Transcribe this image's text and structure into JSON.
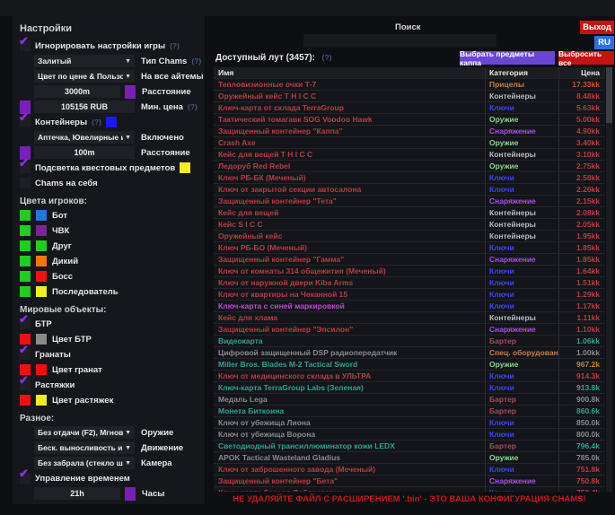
{
  "window": {
    "search_label": "Поиск",
    "exit_button": "Выход",
    "lang_button": "RU",
    "footer_warning": "НЕ УДАЛЯЙТЕ ФАЙЛ С РАСШИРЕНИЕМ '.bin' - ЭТО ВАША КОНФИГУРАЦИЯ CHAMS!"
  },
  "settings": {
    "title": "Настройки",
    "hint": "(?)",
    "ignore": {
      "label": "Игнорировать настройки игры",
      "hint": "(?)"
    },
    "chams_type": {
      "value": "Залитый",
      "label": "Тип Chams",
      "hint": "(?)"
    },
    "color_mode": {
      "value": "Цвет по цене & Пользователь",
      "label": "На все айтемы"
    },
    "distance": {
      "value": "3000m",
      "label": "Расстояние",
      "swatch": "#7a1fb8"
    },
    "min_price": {
      "value": "105156 RUB",
      "label": "Мин. цена",
      "hint": "(?)",
      "swatch": "#7a1fb8"
    },
    "containers": {
      "label": "Контейнеры",
      "hint": "(?)",
      "swatch": "#1a1aee"
    },
    "loot_filter": {
      "value": "Аптечка, Ювелирные и...",
      "label": "Включено"
    },
    "loot_distance": {
      "value": "100m",
      "label": "Расстояние",
      "swatch": "#7a1fb8"
    },
    "quest_items": {
      "label": "Подсветка квестовых предметов",
      "swatch": "#f2ee22"
    },
    "chams_self": {
      "label": "Chams на себя"
    },
    "player_colors": {
      "title": "Цвета игроков:",
      "items": [
        {
          "label": "Бот",
          "c1": "#22cc22",
          "c2": "#2277dd"
        },
        {
          "label": "ЧВК",
          "c1": "#22cc22",
          "c2": "#7b2597"
        },
        {
          "label": "Друг",
          "c1": "#22cc22",
          "c2": "#22cc22"
        },
        {
          "label": "Дикий",
          "c1": "#22cc22",
          "c2": "#ee7711"
        },
        {
          "label": "Босс",
          "c1": "#22cc22",
          "c2": "#ee1111"
        },
        {
          "label": "Последователь",
          "c1": "#22cc22",
          "c2": "#eeee22"
        }
      ]
    },
    "world_objects": {
      "title": "Мировые объекты:",
      "btr": {
        "label": "БТР"
      },
      "btr_color": {
        "label": "Цвет БТР",
        "c1": "#ee1111",
        "c2": "#8a8a8a"
      },
      "grenades": {
        "label": "Гранаты"
      },
      "grenades_color": {
        "label": "Цвет гранат",
        "c1": "#ee1111",
        "c2": "#ee1111"
      },
      "tripwires": {
        "label": "Растяжки"
      },
      "tripwires_color": {
        "label": "Цвет растяжек",
        "c1": "#ee1111",
        "c2": "#eeee22"
      }
    },
    "misc": {
      "title": "Разное:",
      "dropdowns": [
        {
          "value": "Без отдачи (F2), Мгновенное п",
          "label": "Оружие"
        },
        {
          "value": "Беск. выносливость и нет уста",
          "label": "Движение"
        },
        {
          "value": "Без забрала (стекло шлема)",
          "label": "Камера"
        }
      ],
      "time_control": {
        "label": "Управление временем"
      },
      "hours": {
        "value": "21h",
        "label": "Часы",
        "swatch": "#7a1fb8"
      }
    }
  },
  "loot": {
    "title": "Доступный лут (3457):",
    "hint": "(?)",
    "kappa_button": "Выбрать предметы каппа",
    "discard_button": "Выбросить все",
    "columns": {
      "name": "Имя",
      "category": "Категория",
      "price": "Цена"
    },
    "category_colors": {
      "Прицелы": "#c78048",
      "Контейнеры": "#b9bcc2",
      "Ключи": "#3b49e8",
      "Оружие": "#86d98a",
      "Снаряжение": "#a94fe8",
      "Бартер": "#a84a5e",
      "Спец. оборудование": "#c78048"
    },
    "palette": {
      "red": "#b04040",
      "orange": "#c5823a",
      "orangered": "#c4552f",
      "magenta": "#b84ccc",
      "teal": "#31a294",
      "gray": "#868b92"
    },
    "rows": [
      {
        "n": "Тепловизионные очки Т-7",
        "c": "Прицелы",
        "p": "17.33kk",
        "nc": "red",
        "pc": "orangered"
      },
      {
        "n": "Оружейный кейс T H I C C",
        "c": "Контейнеры",
        "p": "8.48kk",
        "nc": "red",
        "pc": "red"
      },
      {
        "n": "Ключ-карта от склада TerraGroup",
        "c": "Ключи",
        "p": "5.63kk",
        "nc": "red",
        "pc": "red"
      },
      {
        "n": "Тактический томагавк SOG Voodoo Hawk",
        "c": "Оружие",
        "p": "5.00kk",
        "nc": "red",
        "pc": "red"
      },
      {
        "n": "Защищенный контейнер \"Каппа\"",
        "c": "Снаряжение",
        "p": "4.90kk",
        "nc": "red",
        "pc": "red"
      },
      {
        "n": "Crash Axe",
        "c": "Оружие",
        "p": "3.40kk",
        "nc": "red",
        "pc": "red"
      },
      {
        "n": "Кейс для вещей T H I C C",
        "c": "Контейнеры",
        "p": "3.10kk",
        "nc": "red",
        "pc": "red"
      },
      {
        "n": "Ледоруб Red Rebel",
        "c": "Оружие",
        "p": "2.75kk",
        "nc": "red",
        "pc": "red"
      },
      {
        "n": "Ключ РБ-БК (Меченый)",
        "c": "Ключи",
        "p": "2.58kk",
        "nc": "red",
        "pc": "red"
      },
      {
        "n": "Ключ от закрытой секции автосалона",
        "c": "Ключи",
        "p": "2.26kk",
        "nc": "red",
        "pc": "red"
      },
      {
        "n": "Защищенный контейнер \"Тета\"",
        "c": "Снаряжение",
        "p": "2.15kk",
        "nc": "red",
        "pc": "red"
      },
      {
        "n": "Кейс для вещей",
        "c": "Контейнеры",
        "p": "2.08kk",
        "nc": "red",
        "pc": "red"
      },
      {
        "n": "Кейс S I C C",
        "c": "Контейнеры",
        "p": "2.05kk",
        "nc": "red",
        "pc": "red"
      },
      {
        "n": "Оружейный кейс",
        "c": "Контейнеры",
        "p": "1.95kk",
        "nc": "red",
        "pc": "red"
      },
      {
        "n": "Ключ РБ-БО (Меченый)",
        "c": "Ключи",
        "p": "1.85kk",
        "nc": "red",
        "pc": "red"
      },
      {
        "n": "Защищенный контейнер \"Гамма\"",
        "c": "Снаряжение",
        "p": "1.85kk",
        "nc": "red",
        "pc": "red"
      },
      {
        "n": "Ключ от комнаты 314 общежития (Меченый)",
        "c": "Ключи",
        "p": "1.64kk",
        "nc": "red",
        "pc": "red"
      },
      {
        "n": "Ключ от наружной двери Kiba Arms",
        "c": "Ключи",
        "p": "1.51kk",
        "nc": "red",
        "pc": "red"
      },
      {
        "n": "Ключ от квартиры на Чеканной 15",
        "c": "Ключи",
        "p": "1.29kk",
        "nc": "red",
        "pc": "red"
      },
      {
        "n": "Ключ-карта с синей маркировкой",
        "c": "Ключи",
        "p": "1.17kk",
        "nc": "magenta",
        "pc": "red"
      },
      {
        "n": "Кейс для хлама",
        "c": "Контейнеры",
        "p": "1.11kk",
        "nc": "red",
        "pc": "red"
      },
      {
        "n": "Защищенный контейнер \"Эпсилон\"",
        "c": "Снаряжение",
        "p": "1.10kk",
        "nc": "red",
        "pc": "red"
      },
      {
        "n": "Видеокарта",
        "c": "Бартер",
        "p": "1.06kk",
        "nc": "teal",
        "pc": "teal"
      },
      {
        "n": "Цифровой защищенный DSP радиопередатчик",
        "c": "Спец. оборудование",
        "p": "1.00kk",
        "nc": "gray",
        "pc": "gray"
      },
      {
        "n": "Miller Bros. Blades M-2 Tactical Sword",
        "c": "Оружие",
        "p": "967.2k",
        "nc": "teal",
        "pc": "orange"
      },
      {
        "n": "Ключ от медицинского склада в УЛЬТРА",
        "c": "Ключи",
        "p": "914.3k",
        "nc": "red",
        "pc": "red"
      },
      {
        "n": "Ключ-карта TerraGroup Labs (Зеленая)",
        "c": "Ключи",
        "p": "913.8k",
        "nc": "teal",
        "pc": "teal"
      },
      {
        "n": "Медаль Lega",
        "c": "Бартер",
        "p": "900.8k",
        "nc": "gray",
        "pc": "gray"
      },
      {
        "n": "Монета Биткоина",
        "c": "Бартер",
        "p": "860.6k",
        "nc": "teal",
        "pc": "teal"
      },
      {
        "n": "Ключ от убежища Лиона",
        "c": "Ключи",
        "p": "850.0k",
        "nc": "gray",
        "pc": "gray"
      },
      {
        "n": "Ключ от убежища Ворона",
        "c": "Ключи",
        "p": "800.0k",
        "nc": "gray",
        "pc": "gray"
      },
      {
        "n": "Светодиодный трансиллюминатор кожи LEDX",
        "c": "Бартер",
        "p": "796.4k",
        "nc": "teal",
        "pc": "teal"
      },
      {
        "n": "APOK Tactical Wasteland Gladius",
        "c": "Оружие",
        "p": "785.0k",
        "nc": "gray",
        "pc": "gray"
      },
      {
        "n": "Ключ от заброшенного завода (Меченый)",
        "c": "Ключи",
        "p": "751.8k",
        "nc": "red",
        "pc": "red"
      },
      {
        "n": "Защищенный контейнер \"Бета\"",
        "c": "Снаряжение",
        "p": "750.8k",
        "nc": "red",
        "pc": "red"
      },
      {
        "n": "Ключ-карта боссов Лаборатории",
        "c": "Ключи",
        "p": "750.4k",
        "nc": "red",
        "pc": "red"
      }
    ]
  }
}
